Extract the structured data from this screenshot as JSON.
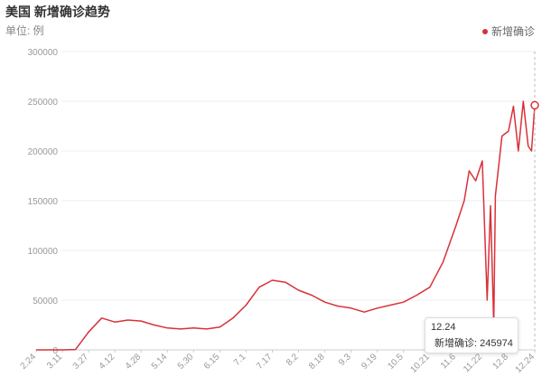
{
  "header": {
    "title": "美国 新增确诊趋势",
    "unit": "单位: 例"
  },
  "legend": {
    "label": "新增确诊",
    "color": "#d9313a"
  },
  "tooltip": {
    "date": "12.24",
    "label": "新增确诊: 245974"
  },
  "chart_data": {
    "type": "line",
    "title": "美国 新增确诊趋势",
    "subtitle": "单位: 例",
    "series": [
      {
        "name": "新增确诊",
        "color": "#d9313a",
        "points": [
          [
            "2.24",
            0
          ],
          [
            "3.11",
            0
          ],
          [
            "3.19",
            400
          ],
          [
            "3.27",
            18000
          ],
          [
            "4.04",
            32000
          ],
          [
            "4.12",
            28000
          ],
          [
            "4.20",
            30000
          ],
          [
            "4.28",
            29000
          ],
          [
            "5.06",
            25000
          ],
          [
            "5.14",
            22000
          ],
          [
            "5.22",
            21000
          ],
          [
            "5.30",
            22000
          ],
          [
            "6.07",
            21000
          ],
          [
            "6.15",
            23000
          ],
          [
            "6.23",
            32000
          ],
          [
            "7.01",
            45000
          ],
          [
            "7.09",
            63000
          ],
          [
            "7.17",
            70000
          ],
          [
            "7.25",
            68000
          ],
          [
            "8.02",
            60000
          ],
          [
            "8.10",
            55000
          ],
          [
            "8.18",
            48000
          ],
          [
            "8.26",
            44000
          ],
          [
            "9.03",
            42000
          ],
          [
            "9.11",
            38000
          ],
          [
            "9.19",
            42000
          ],
          [
            "9.27",
            45000
          ],
          [
            "10.05",
            48000
          ],
          [
            "10.13",
            55000
          ],
          [
            "10.21",
            63000
          ],
          [
            "10.29",
            88000
          ],
          [
            "11.06",
            125000
          ],
          [
            "11.11",
            150000
          ],
          [
            "11.14",
            180000
          ],
          [
            "11.18",
            170000
          ],
          [
            "11.22",
            190000
          ],
          [
            "11.25",
            50000
          ],
          [
            "11.27",
            145000
          ],
          [
            "11.29",
            25000
          ],
          [
            "11.30",
            155000
          ],
          [
            "12.04",
            215000
          ],
          [
            "12.08",
            220000
          ],
          [
            "12.11",
            245000
          ],
          [
            "12.14",
            200000
          ],
          [
            "12.17",
            250000
          ],
          [
            "12.20",
            205000
          ],
          [
            "12.22",
            200000
          ],
          [
            "12.24",
            245974
          ]
        ]
      }
    ],
    "x_ticks": [
      "2.24",
      "3.11",
      "3.27",
      "4.12",
      "4.28",
      "5.14",
      "5.30",
      "6.15",
      "7.1",
      "7.17",
      "8.2",
      "8.18",
      "9.3",
      "9.19",
      "10.5",
      "10.21",
      "11.6",
      "11.22",
      "12.8",
      "12.24"
    ],
    "y_ticks": [
      0,
      50000,
      100000,
      150000,
      200000,
      250000,
      300000
    ],
    "ylim": [
      0,
      300000
    ],
    "grid": true,
    "legend_position": "top-right"
  }
}
